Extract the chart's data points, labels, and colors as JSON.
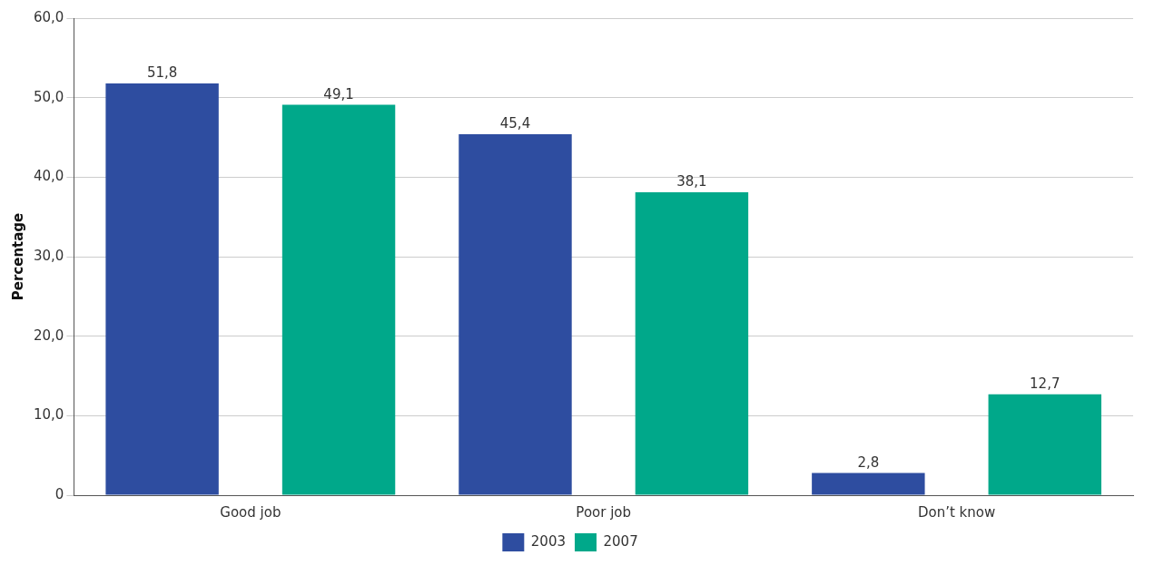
{
  "chart_data": {
    "type": "bar",
    "ylabel": "Percentage",
    "categories": [
      "Good job",
      "Poor job",
      "Don’t know"
    ],
    "series": [
      {
        "name": "2003",
        "color": "#2e4da0",
        "values": [
          51.8,
          45.4,
          2.8
        ],
        "value_labels": [
          "51,8",
          "45,4",
          "2,8"
        ]
      },
      {
        "name": "2007",
        "color": "#00a88a",
        "values": [
          49.1,
          38.1,
          12.7
        ],
        "value_labels": [
          "49,1",
          "38,1",
          "12,7"
        ]
      }
    ],
    "ylim": [
      0,
      60
    ],
    "yticks": [
      0,
      {
        "value": 10,
        "label": "10,0"
      },
      {
        "value": 20,
        "label": "20,0"
      },
      {
        "value": 30,
        "label": "30,0"
      },
      {
        "value": 40,
        "label": "40,0"
      },
      {
        "value": 50,
        "label": "50,0"
      },
      {
        "value": 60,
        "label": "60,0"
      }
    ],
    "grid": "y",
    "legend": "bottom"
  }
}
